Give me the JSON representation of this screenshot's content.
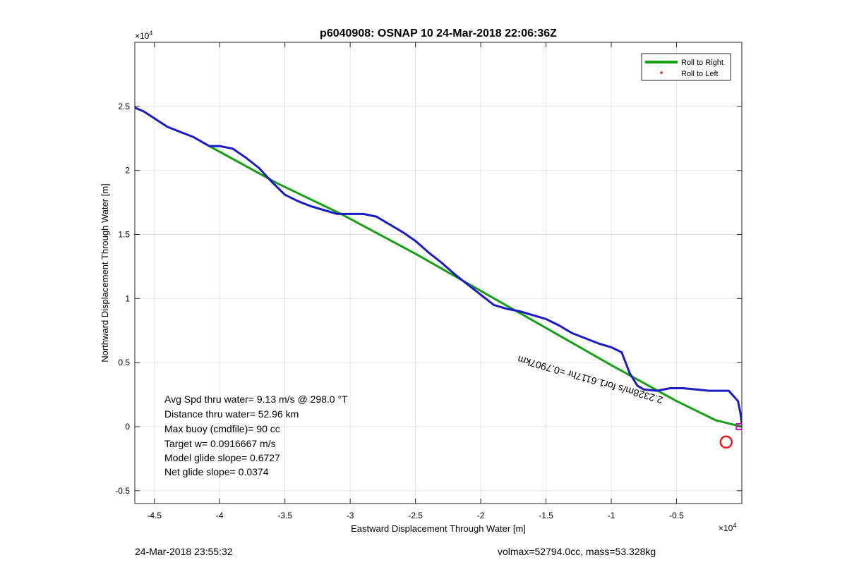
{
  "chart_data": {
    "type": "line",
    "title": "p6040908: OSNAP 10 24-Mar-2018 22:06:36Z",
    "xlabel": "Eastward Displacement Through Water [m]",
    "ylabel": "Northward Displacement Through Water [m]",
    "x_exponent_label": "×10",
    "x_exponent": "4",
    "y_exponent_label": "×10",
    "y_exponent": "4",
    "xlim": [
      -46500,
      0
    ],
    "ylim": [
      -6000,
      30000
    ],
    "grid": true,
    "legend_placement": "top-right",
    "x_ticks": [
      -45000,
      -40000,
      -35000,
      -30000,
      -25000,
      -20000,
      -15000,
      -10000,
      -5000
    ],
    "x_tick_labels": [
      "-4.5",
      "-4",
      "-3.5",
      "-3",
      "-2.5",
      "-2",
      "-1.5",
      "-1",
      "-0.5"
    ],
    "y_ticks": [
      -5000,
      0,
      5000,
      10000,
      15000,
      20000,
      25000
    ],
    "y_tick_labels": [
      "-0.5",
      "0",
      "0.5",
      "1",
      "1.5",
      "2",
      "2.5"
    ],
    "series": [
      {
        "name": "Roll to Right",
        "color": "#13a013",
        "values_xy": [
          [
            -40800,
            21900
          ],
          [
            -35600,
            19000
          ],
          [
            -30700,
            16600
          ],
          [
            -25000,
            13500
          ],
          [
            -20000,
            10600
          ],
          [
            -15000,
            7700
          ],
          [
            -10000,
            4800
          ],
          [
            -5000,
            2000
          ],
          [
            -2000,
            500
          ],
          [
            0,
            0
          ]
        ]
      },
      {
        "name": "Roll to Left",
        "color": "#e02020",
        "values_xy": []
      },
      {
        "color": "#1a1ac8",
        "values_xy": [
          [
            -46500,
            24900
          ],
          [
            -45800,
            24600
          ],
          [
            -44000,
            23400
          ],
          [
            -42000,
            22600
          ],
          [
            -40800,
            21900
          ],
          [
            -40000,
            21900
          ],
          [
            -39000,
            21700
          ],
          [
            -38000,
            21000
          ],
          [
            -37000,
            20200
          ],
          [
            -36000,
            19100
          ],
          [
            -35000,
            18100
          ],
          [
            -34000,
            17600
          ],
          [
            -33000,
            17200
          ],
          [
            -32000,
            16900
          ],
          [
            -31000,
            16600
          ],
          [
            -30000,
            16600
          ],
          [
            -29000,
            16600
          ],
          [
            -28000,
            16400
          ],
          [
            -27000,
            15800
          ],
          [
            -26000,
            15200
          ],
          [
            -25000,
            14500
          ],
          [
            -24000,
            13600
          ],
          [
            -23000,
            12800
          ],
          [
            -22000,
            11900
          ],
          [
            -21000,
            11100
          ],
          [
            -20000,
            10300
          ],
          [
            -19000,
            9500
          ],
          [
            -18000,
            9200
          ],
          [
            -17000,
            9000
          ],
          [
            -16000,
            8700
          ],
          [
            -15000,
            8400
          ],
          [
            -14000,
            7900
          ],
          [
            -13000,
            7300
          ],
          [
            -12000,
            6900
          ],
          [
            -11000,
            6500
          ],
          [
            -10000,
            6200
          ],
          [
            -9200,
            5800
          ],
          [
            -8600,
            4200
          ],
          [
            -8000,
            3200
          ],
          [
            -7500,
            2900
          ],
          [
            -6500,
            2800
          ],
          [
            -5500,
            3000
          ],
          [
            -4500,
            3000
          ],
          [
            -3500,
            2900
          ],
          [
            -2500,
            2800
          ],
          [
            -1000,
            2800
          ],
          [
            -300,
            2000
          ],
          [
            -100,
            1000
          ],
          [
            0,
            200
          ]
        ]
      }
    ],
    "annotations": [
      {
        "text": "2.2328m/s for1.6117hr =0.7907km",
        "x": -6000,
        "y": 2300,
        "rotation": 196
      }
    ],
    "markers": [
      {
        "type": "circle",
        "color": "#e02020",
        "x": -1200,
        "y": -1200
      },
      {
        "type": "square",
        "color": "#d010d0",
        "x": -200,
        "y": 0
      }
    ]
  },
  "stats": [
    "Avg Spd thru water=  9.13 m/s @ 298.0 °T",
    "Distance thru water= 52.96 km",
    "Max buoy (cmdfile)= 90 cc",
    "Target w= 0.0916667 m/s",
    "Model glide slope= 0.6727",
    "Net glide slope= 0.0374"
  ],
  "footer": {
    "timestamp": "24-Mar-2018 23:55:32",
    "vehicle": "volmax=52794.0cc, mass=53.328kg"
  }
}
